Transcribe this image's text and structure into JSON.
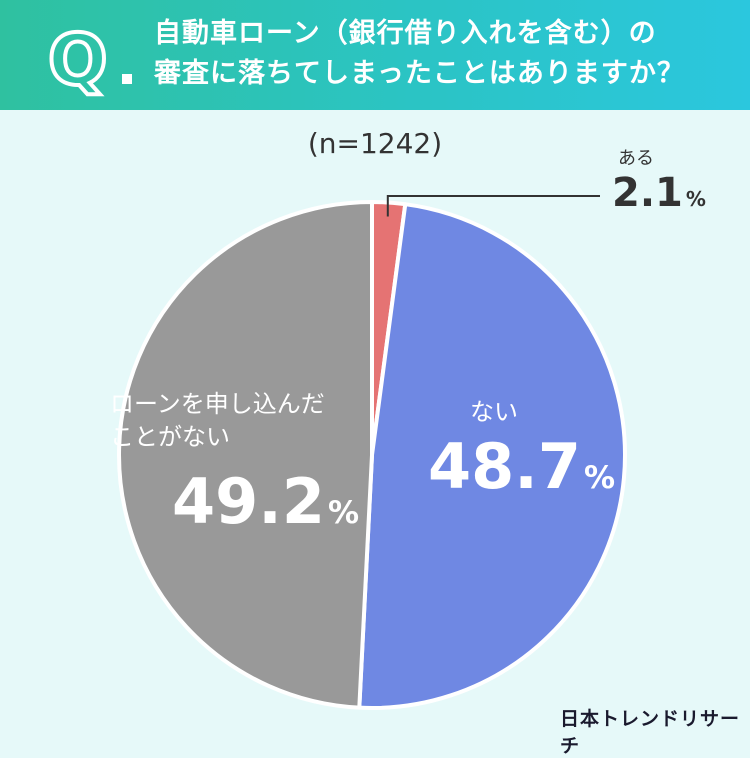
{
  "question": {
    "mark": "Q.",
    "line1": "自動車ローン（銀行借り入れを含む）の",
    "line2": "審査に落ちてしまったことはありますか？"
  },
  "sample_size": "(n=1242)",
  "brand": "日本トレンドリサーチ",
  "colors": {
    "header_start": "#2fc1a0",
    "header_end": "#2bc7de",
    "background": "#e6f9f9",
    "aru": "#e57373",
    "nai": "#6f88e3",
    "never": "#999999"
  },
  "chart_data": {
    "type": "pie",
    "title": "",
    "slices": [
      {
        "label": "ある",
        "value": 2.1,
        "display": "2.1",
        "unit": "%",
        "color": "#e57373"
      },
      {
        "label": "ない",
        "value": 48.7,
        "display": "48.7",
        "unit": "%",
        "color": "#6f88e3"
      },
      {
        "label_lines": [
          "ローンを申し込んだ",
          "ことがない"
        ],
        "value": 49.2,
        "display": "49.2",
        "unit": "%",
        "color": "#999999"
      }
    ],
    "start": "top",
    "direction": "clockwise"
  }
}
